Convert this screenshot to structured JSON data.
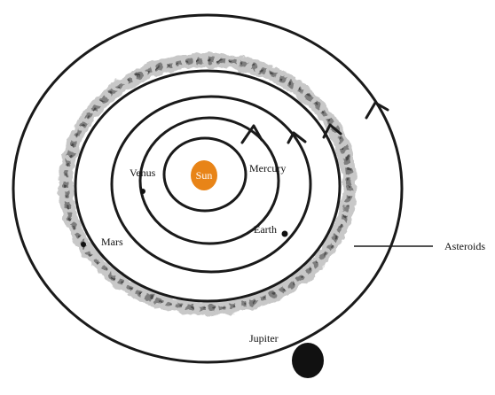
{
  "diagram": {
    "labels": {
      "sun": "Sun",
      "mercury": "Mercury",
      "venus": "Venus",
      "earth": "Earth",
      "mars": "Mars",
      "asteroids": "Asteroids",
      "jupiter": "Jupiter"
    },
    "colors": {
      "sun": "#E88417",
      "orbit": "#1a1a1a",
      "jupiter": "#111111",
      "asteroid_belt": "#9a9a9a"
    }
  }
}
